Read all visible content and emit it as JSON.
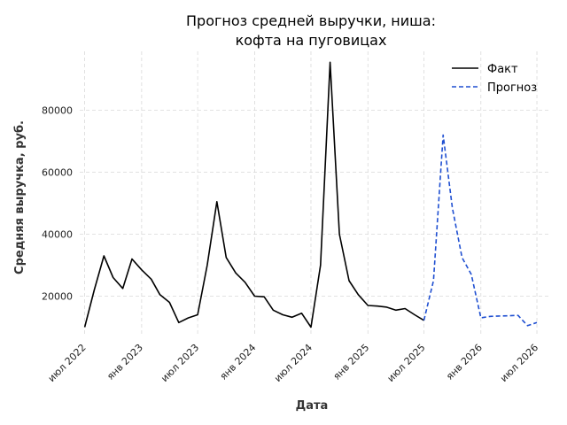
{
  "chart_data": {
    "type": "line",
    "title_line1": "Прогноз средней выручки, ниша:",
    "title_line2": "кофта на пуговицах",
    "xlabel": "Дата",
    "ylabel": "Средняя выручка, руб.",
    "ylim": [
      7000,
      99000
    ],
    "yticks": [
      20000,
      40000,
      60000,
      80000
    ],
    "xlim": [
      "2022-06-15",
      "2026-08-10"
    ],
    "xticks": [
      {
        "date": "2022-07-01",
        "label": "июл 2022"
      },
      {
        "date": "2023-01-01",
        "label": "янв 2023"
      },
      {
        "date": "2023-07-01",
        "label": "июл 2023"
      },
      {
        "date": "2024-01-01",
        "label": "янв 2024"
      },
      {
        "date": "2024-07-01",
        "label": "июл 2024"
      },
      {
        "date": "2025-01-01",
        "label": "янв 2025"
      },
      {
        "date": "2025-07-01",
        "label": "июл 2025"
      },
      {
        "date": "2026-01-01",
        "label": "янв 2026"
      },
      {
        "date": "2026-07-01",
        "label": "июл 2026"
      }
    ],
    "grid": true,
    "legend_position": "top-right",
    "series": [
      {
        "name": "Факт",
        "color": "#000000",
        "dash": "solid",
        "points": [
          [
            "2022-07-01",
            10000
          ],
          [
            "2022-08-01",
            22000
          ],
          [
            "2022-09-01",
            33000
          ],
          [
            "2022-10-01",
            26000
          ],
          [
            "2022-11-01",
            22500
          ],
          [
            "2022-12-01",
            32000
          ],
          [
            "2023-01-01",
            28500
          ],
          [
            "2023-02-01",
            25500
          ],
          [
            "2023-03-01",
            20500
          ],
          [
            "2023-04-01",
            18000
          ],
          [
            "2023-05-01",
            11500
          ],
          [
            "2023-06-01",
            13000
          ],
          [
            "2023-07-01",
            14000
          ],
          [
            "2023-08-01",
            30000
          ],
          [
            "2023-09-01",
            50500
          ],
          [
            "2023-10-01",
            32500
          ],
          [
            "2023-11-01",
            27500
          ],
          [
            "2023-12-01",
            24500
          ],
          [
            "2024-01-01",
            20000
          ],
          [
            "2024-02-01",
            19800
          ],
          [
            "2024-03-01",
            15500
          ],
          [
            "2024-04-01",
            14000
          ],
          [
            "2024-05-01",
            13200
          ],
          [
            "2024-06-01",
            14500
          ],
          [
            "2024-07-01",
            10000
          ],
          [
            "2024-08-01",
            30000
          ],
          [
            "2024-09-01",
            95500
          ],
          [
            "2024-10-01",
            40000
          ],
          [
            "2024-11-01",
            25000
          ],
          [
            "2024-12-01",
            20500
          ],
          [
            "2025-01-01",
            17000
          ],
          [
            "2025-02-01",
            16800
          ],
          [
            "2025-03-01",
            16500
          ],
          [
            "2025-04-01",
            15500
          ],
          [
            "2025-05-01",
            16000
          ],
          [
            "2025-06-01",
            14000
          ],
          [
            "2025-07-01",
            12200
          ]
        ]
      },
      {
        "name": "Прогноз",
        "color": "#1f4fd1",
        "dash": "dashed",
        "points": [
          [
            "2025-07-01",
            12200
          ],
          [
            "2025-08-01",
            25000
          ],
          [
            "2025-09-01",
            72000
          ],
          [
            "2025-10-01",
            48500
          ],
          [
            "2025-11-01",
            32500
          ],
          [
            "2025-12-01",
            27000
          ],
          [
            "2026-01-01",
            13000
          ],
          [
            "2026-02-01",
            13500
          ],
          [
            "2026-03-01",
            13600
          ],
          [
            "2026-04-01",
            13700
          ],
          [
            "2026-05-01",
            13800
          ],
          [
            "2026-06-01",
            10500
          ],
          [
            "2026-07-01",
            11500
          ]
        ]
      }
    ]
  }
}
